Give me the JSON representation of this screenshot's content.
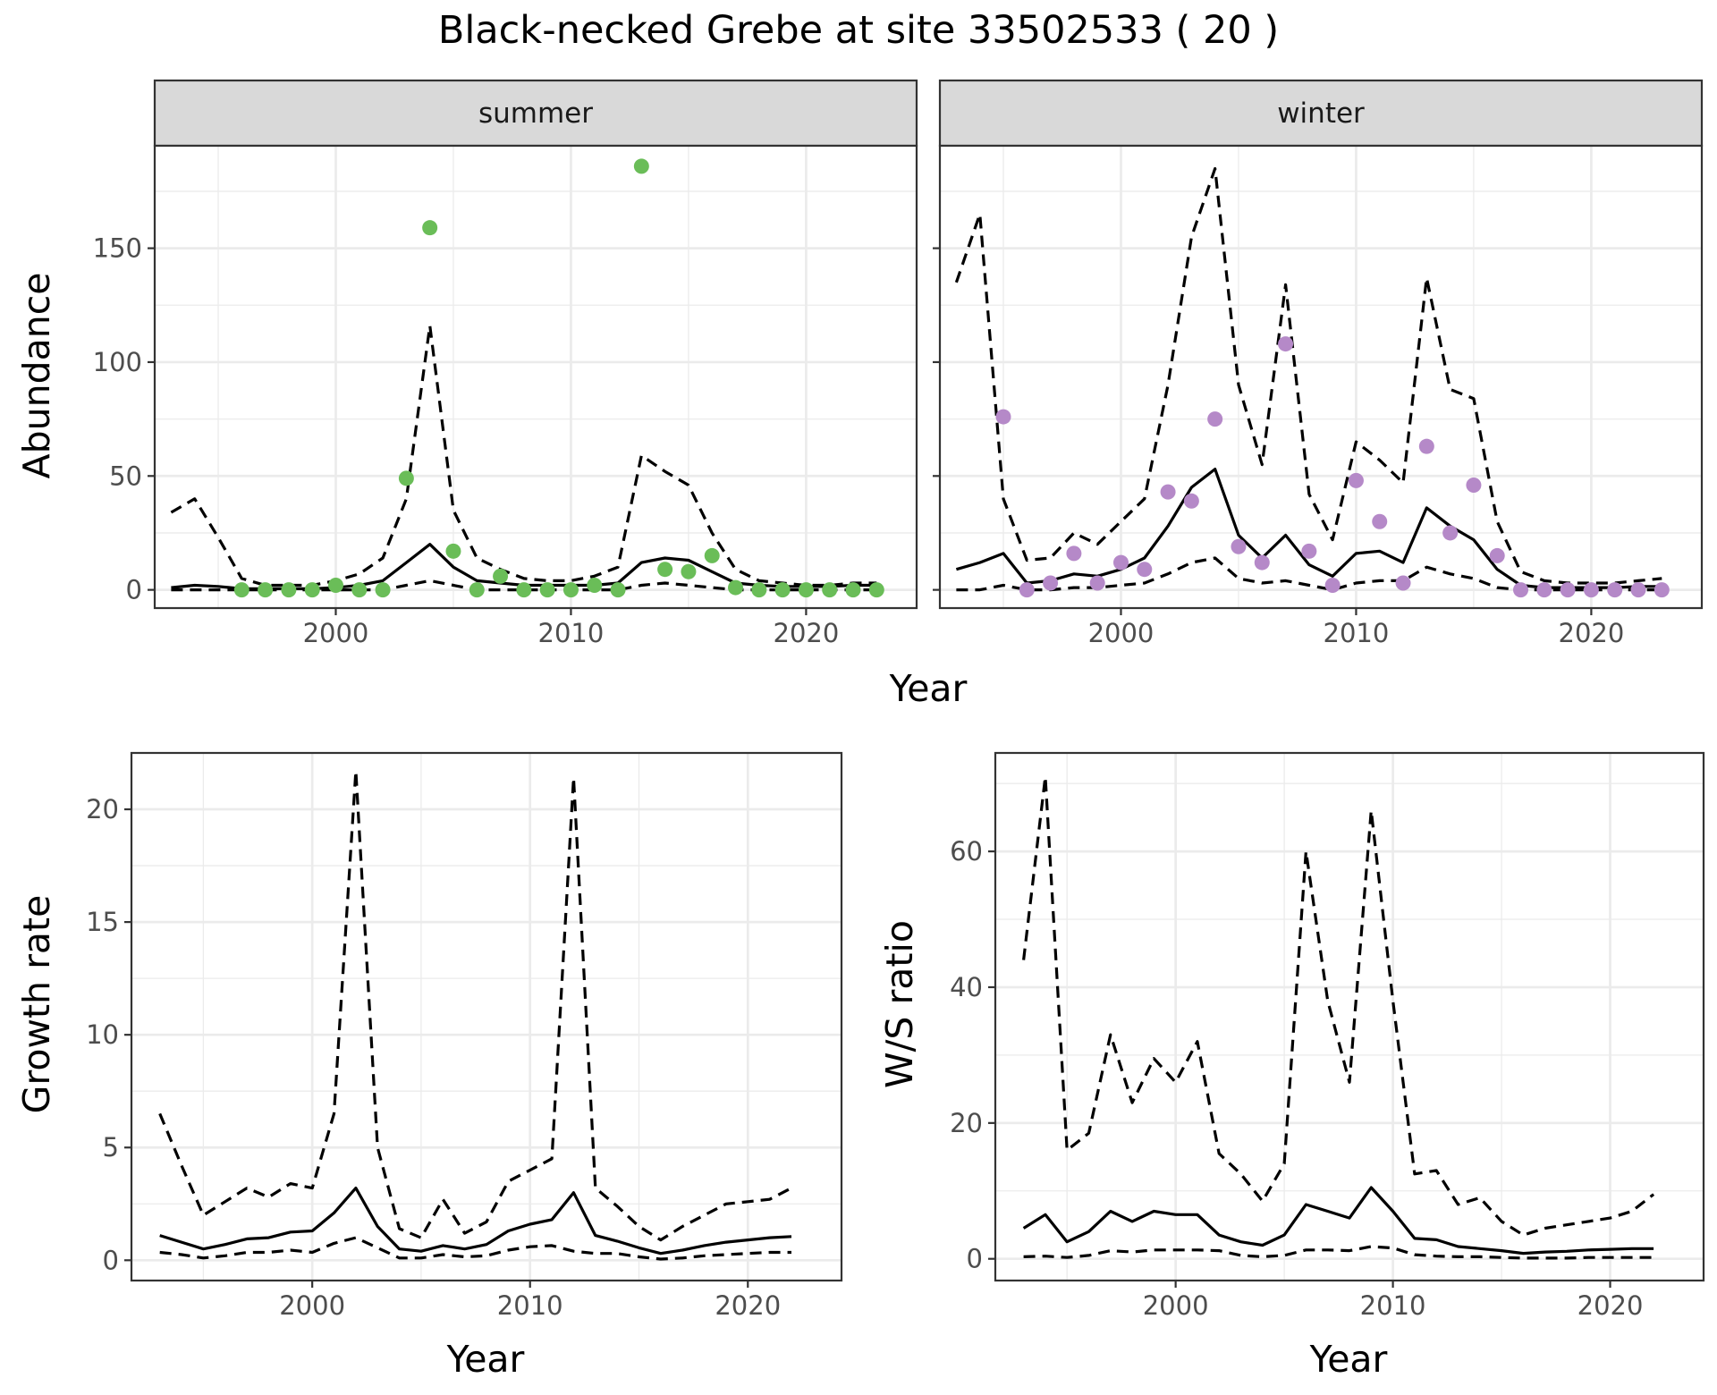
{
  "title": "Black-necked Grebe at site 33502533 ( 20 )",
  "chart_data": [
    {
      "type": "line",
      "facet": "summer",
      "xlabel": "Year",
      "ylabel": "Abundance",
      "xlim": [
        1992.3,
        2024.7
      ],
      "ylim": [
        -8,
        195
      ],
      "xticks": [
        2000,
        2010,
        2020
      ],
      "yticks": [
        0,
        50,
        100,
        150
      ],
      "points_color": "#6abd58",
      "points": {
        "x": [
          1996,
          1997,
          1998,
          1999,
          2000,
          2001,
          2002,
          2003,
          2004,
          2005,
          2006,
          2007,
          2008,
          2009,
          2010,
          2011,
          2012,
          2013,
          2014,
          2015,
          2016,
          2017,
          2018,
          2019,
          2020,
          2021,
          2022,
          2023
        ],
        "y": [
          0,
          0,
          0,
          0,
          2,
          0,
          0,
          49,
          159,
          17,
          0,
          6,
          0,
          0,
          0,
          2,
          0,
          186,
          9,
          8,
          15,
          1,
          0,
          0,
          0,
          0,
          0,
          0
        ]
      },
      "x": [
        1993,
        1994,
        1995,
        1996,
        1997,
        1998,
        1999,
        2000,
        2001,
        2002,
        2003,
        2004,
        2005,
        2006,
        2007,
        2008,
        2009,
        2010,
        2011,
        2012,
        2013,
        2014,
        2015,
        2016,
        2017,
        2018,
        2019,
        2020,
        2021,
        2022,
        2023
      ],
      "series": [
        {
          "name": "estimate",
          "values": [
            1,
            2,
            1.5,
            0.5,
            0.5,
            0.5,
            0.5,
            1,
            2,
            4,
            12,
            20,
            10,
            4,
            3,
            2,
            2,
            2,
            2,
            3,
            12,
            14,
            13,
            8,
            3,
            2,
            1.5,
            1.5,
            1.5,
            2,
            2
          ]
        },
        {
          "name": "upper",
          "values": [
            34,
            40,
            23,
            5,
            2,
            2,
            2,
            4,
            7,
            14,
            40,
            116,
            35,
            14,
            9,
            5,
            4,
            4,
            6,
            10,
            59,
            52,
            46,
            25,
            9,
            4,
            3,
            2,
            2,
            3,
            3
          ]
        },
        {
          "name": "lower",
          "values": [
            0,
            0,
            0,
            0,
            0,
            0,
            0,
            0,
            0,
            0,
            2,
            4,
            2,
            0,
            0,
            0,
            0,
            0,
            0,
            0,
            2,
            3,
            2,
            1,
            0,
            0,
            0,
            0,
            0,
            0,
            0
          ]
        }
      ]
    },
    {
      "type": "line",
      "facet": "winter",
      "xlabel": "Year",
      "ylabel": "Abundance",
      "xlim": [
        1992.3,
        2024.7
      ],
      "ylim": [
        -8,
        195
      ],
      "xticks": [
        2000,
        2010,
        2020
      ],
      "yticks": [
        0,
        50,
        100,
        150
      ],
      "points_color": "#b589c8",
      "points": {
        "x": [
          1995,
          1996,
          1997,
          1998,
          1999,
          2000,
          2001,
          2002,
          2003,
          2004,
          2005,
          2006,
          2007,
          2008,
          2009,
          2010,
          2011,
          2012,
          2013,
          2014,
          2015,
          2016,
          2017,
          2018,
          2019,
          2020,
          2021,
          2022,
          2023
        ],
        "y": [
          76,
          0,
          3,
          16,
          3,
          12,
          9,
          43,
          39,
          75,
          19,
          12,
          108,
          17,
          2,
          48,
          30,
          3,
          63,
          25,
          46,
          15,
          0,
          0,
          0,
          0,
          0,
          0,
          0
        ]
      },
      "x": [
        1993,
        1994,
        1995,
        1996,
        1997,
        1998,
        1999,
        2000,
        2001,
        2002,
        2003,
        2004,
        2005,
        2006,
        2007,
        2008,
        2009,
        2010,
        2011,
        2012,
        2013,
        2014,
        2015,
        2016,
        2017,
        2018,
        2019,
        2020,
        2021,
        2022,
        2023
      ],
      "series": [
        {
          "name": "estimate",
          "values": [
            9,
            12,
            16,
            3,
            4,
            7,
            6,
            9,
            14,
            28,
            45,
            53,
            24,
            14,
            24,
            11,
            6,
            16,
            17,
            12,
            36,
            28,
            22,
            9,
            2,
            1,
            1,
            1,
            1,
            1.5,
            1.5
          ]
        },
        {
          "name": "upper",
          "values": [
            135,
            165,
            40,
            13,
            14,
            25,
            20,
            30,
            40,
            90,
            155,
            185,
            90,
            55,
            134,
            42,
            22,
            65,
            57,
            47,
            137,
            88,
            84,
            30,
            8,
            4,
            3,
            3,
            3,
            4,
            5
          ]
        },
        {
          "name": "lower",
          "values": [
            0,
            0,
            2,
            0,
            0,
            1,
            1,
            2,
            3,
            7,
            12,
            14,
            5,
            3,
            4,
            2,
            0,
            3,
            4,
            4,
            10,
            7,
            5,
            1,
            0,
            0,
            0,
            0,
            0,
            0,
            0
          ]
        }
      ]
    },
    {
      "type": "line",
      "xlabel": "Year",
      "ylabel": "Growth rate",
      "xlim": [
        1991.7,
        2024.3
      ],
      "ylim": [
        -0.9,
        22.5
      ],
      "xticks": [
        2000,
        2010,
        2020
      ],
      "yticks": [
        0,
        5,
        10,
        15,
        20
      ],
      "x": [
        1993,
        1994,
        1995,
        1996,
        1997,
        1998,
        1999,
        2000,
        2001,
        2002,
        2003,
        2004,
        2005,
        2006,
        2007,
        2008,
        2009,
        2010,
        2011,
        2012,
        2013,
        2014,
        2015,
        2016,
        2017,
        2018,
        2019,
        2020,
        2021,
        2022
      ],
      "series": [
        {
          "name": "estimate",
          "values": [
            1.1,
            0.8,
            0.5,
            0.7,
            0.95,
            1.0,
            1.25,
            1.3,
            2.1,
            3.2,
            1.5,
            0.5,
            0.4,
            0.65,
            0.5,
            0.7,
            1.3,
            1.6,
            1.8,
            3.0,
            1.1,
            0.85,
            0.55,
            0.3,
            0.45,
            0.65,
            0.8,
            0.9,
            1.0,
            1.05
          ]
        },
        {
          "name": "upper",
          "values": [
            6.5,
            4.2,
            2.0,
            2.6,
            3.2,
            2.8,
            3.4,
            3.2,
            6.5,
            21.7,
            5.0,
            1.4,
            1.0,
            2.7,
            1.2,
            1.7,
            3.5,
            4.0,
            4.5,
            21.4,
            3.2,
            2.4,
            1.5,
            0.9,
            1.5,
            2.0,
            2.5,
            2.6,
            2.7,
            3.2
          ]
        },
        {
          "name": "lower",
          "values": [
            0.35,
            0.25,
            0.1,
            0.2,
            0.35,
            0.35,
            0.45,
            0.35,
            0.75,
            1.0,
            0.55,
            0.1,
            0.1,
            0.25,
            0.15,
            0.2,
            0.45,
            0.6,
            0.65,
            0.4,
            0.3,
            0.3,
            0.15,
            0.05,
            0.1,
            0.2,
            0.25,
            0.3,
            0.35,
            0.35
          ]
        }
      ]
    },
    {
      "type": "line",
      "xlabel": "Year",
      "ylabel": "W/S ratio",
      "xlim": [
        1991.7,
        2024.3
      ],
      "ylim": [
        -3.2,
        74.5
      ],
      "xticks": [
        2000,
        2010,
        2020
      ],
      "yticks": [
        0,
        20,
        40,
        60
      ],
      "x": [
        1993,
        1994,
        1995,
        1996,
        1997,
        1998,
        1999,
        2000,
        2001,
        2002,
        2003,
        2004,
        2005,
        2006,
        2007,
        2008,
        2009,
        2010,
        2011,
        2012,
        2013,
        2014,
        2015,
        2016,
        2017,
        2018,
        2019,
        2020,
        2021,
        2022
      ],
      "series": [
        {
          "name": "estimate",
          "values": [
            4.5,
            6.5,
            2.5,
            4,
            7,
            5.5,
            7,
            6.5,
            6.5,
            3.5,
            2.5,
            2,
            3.5,
            8,
            7,
            6,
            10.5,
            7,
            3,
            2.8,
            1.8,
            1.5,
            1.2,
            0.8,
            1,
            1.1,
            1.3,
            1.4,
            1.5,
            1.5
          ]
        },
        {
          "name": "upper",
          "values": [
            44,
            71,
            16,
            18.5,
            33,
            23,
            29.5,
            26,
            32,
            15.5,
            12.5,
            8.5,
            14,
            60,
            38,
            26,
            66,
            38,
            12.5,
            13,
            8,
            9,
            5.5,
            3.5,
            4.5,
            5,
            5.5,
            6,
            7,
            9.5
          ]
        },
        {
          "name": "lower",
          "values": [
            0.3,
            0.4,
            0.2,
            0.5,
            1.2,
            1.0,
            1.3,
            1.3,
            1.3,
            1.2,
            0.5,
            0.3,
            0.5,
            1.3,
            1.3,
            1.2,
            1.8,
            1.6,
            0.6,
            0.4,
            0.3,
            0.3,
            0.2,
            0.1,
            0.1,
            0.1,
            0.2,
            0.2,
            0.2,
            0.2
          ]
        }
      ]
    }
  ]
}
